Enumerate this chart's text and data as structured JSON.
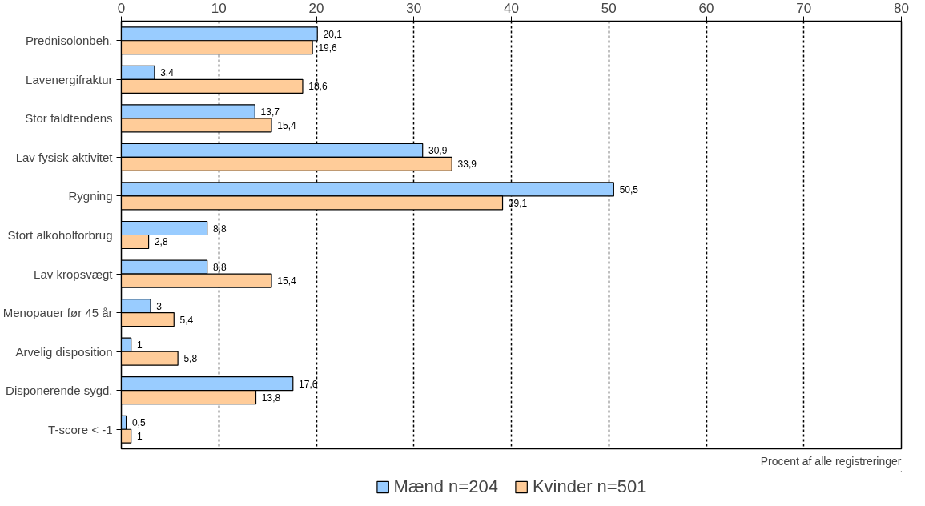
{
  "chart_data": {
    "type": "bar",
    "orientation": "horizontal",
    "xlabel": "Procent af alle registreringer",
    "categories": [
      "Prednisolonbeh.",
      "Lavenergifraktur",
      "Stor faldtendens",
      "Lav fysisk aktivitet",
      "Rygning",
      "Stort alkoholforbrug",
      "Lav kropsvægt",
      "Menopauer før 45 år",
      "Arvelig disposition",
      "Disponerende sygd.",
      "T-score < -1"
    ],
    "series": [
      {
        "name": "Mænd n=204",
        "color": "#99ccff",
        "values": [
          20.1,
          3.4,
          13.7,
          30.9,
          50.5,
          8.8,
          8.8,
          3,
          1,
          17.6,
          0.5
        ],
        "value_labels": [
          "20,1",
          "3,4",
          "13,7",
          "30,9",
          "50,5",
          "8,8",
          "8,8",
          "3",
          "1",
          "17,6",
          "0,5"
        ]
      },
      {
        "name": "Kvinder n=501",
        "color": "#ffcc99",
        "values": [
          19.6,
          18.6,
          15.4,
          33.9,
          39.1,
          2.8,
          15.4,
          5.4,
          5.8,
          13.8,
          1
        ],
        "value_labels": [
          "19,6",
          "18,6",
          "15,4",
          "33,9",
          "39,1",
          "2,8",
          "15,4",
          "5,4",
          "5,8",
          "13,8",
          "1"
        ]
      }
    ],
    "xlim": [
      0,
      80
    ],
    "xticks": [
      0,
      10,
      20,
      30,
      40,
      50,
      60,
      70,
      80
    ],
    "grid": "x",
    "legend": "bottom"
  }
}
